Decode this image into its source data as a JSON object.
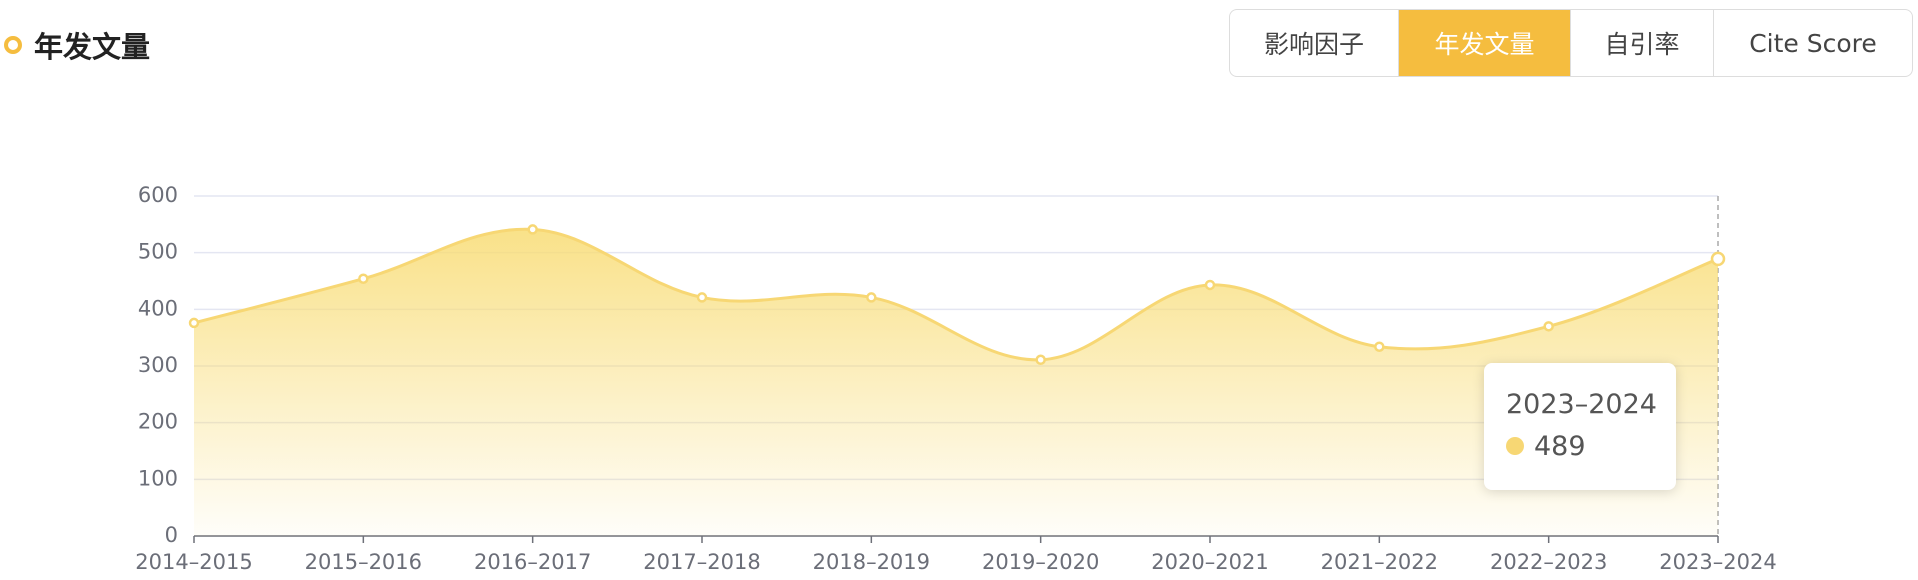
{
  "header": {
    "title": "年发文量"
  },
  "tabs": {
    "items": [
      "影响因子",
      "年发文量",
      "自引率",
      "Cite Score"
    ],
    "active": "年发文量"
  },
  "chart_data": {
    "type": "area",
    "categories": [
      "2014–2015",
      "2015–2016",
      "2016–2017",
      "2017–2018",
      "2018–2019",
      "2019–2020",
      "2020–2021",
      "2021–2022",
      "2022–2023",
      "2023–2024"
    ],
    "values": [
      376,
      454,
      541,
      421,
      421,
      311,
      443,
      334,
      370,
      489
    ],
    "color": "#f7d774",
    "ylim": [
      0,
      600
    ],
    "yticks": [
      0,
      100,
      200,
      300,
      400,
      500,
      600
    ],
    "grid": true,
    "tooltip": {
      "title": "2023–2024",
      "value": 489
    }
  }
}
